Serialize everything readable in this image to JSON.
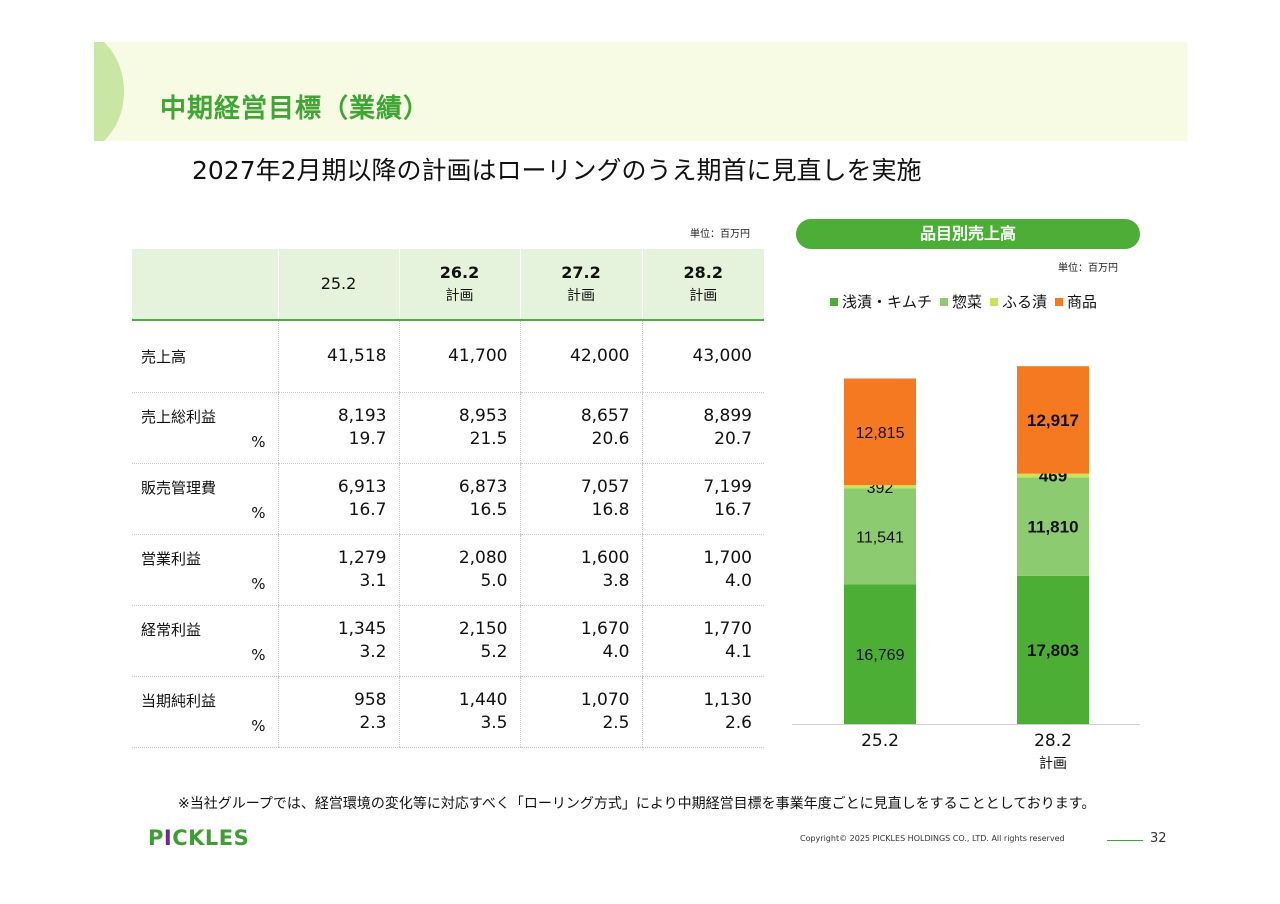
{
  "header": {
    "title": "中期経営目標（業績）",
    "subtitle": "2027年2月期以降の計画はローリングのうえ期首に見直しを実施"
  },
  "table": {
    "unit": "単位：百万円",
    "columns": [
      {
        "line1": "25.2",
        "line2": ""
      },
      {
        "line1": "26.2",
        "line2": "計画"
      },
      {
        "line1": "27.2",
        "line2": "計画"
      },
      {
        "line1": "28.2",
        "line2": "計画"
      }
    ],
    "percent_symbol": "%",
    "rows": [
      {
        "label": "売上高",
        "values": [
          "41,518",
          "41,700",
          "42,000",
          "43,000"
        ],
        "pct": [
          "",
          "",
          "",
          ""
        ]
      },
      {
        "label": "売上総利益",
        "values": [
          "8,193",
          "8,953",
          "8,657",
          "8,899"
        ],
        "pct": [
          "19.7",
          "21.5",
          "20.6",
          "20.7"
        ]
      },
      {
        "label": "販売管理費",
        "values": [
          "6,913",
          "6,873",
          "7,057",
          "7,199"
        ],
        "pct": [
          "16.7",
          "16.5",
          "16.8",
          "16.7"
        ]
      },
      {
        "label": "営業利益",
        "values": [
          "1,279",
          "2,080",
          "1,600",
          "1,700"
        ],
        "pct": [
          "3.1",
          "5.0",
          "3.8",
          "4.0"
        ]
      },
      {
        "label": "経常利益",
        "values": [
          "1,345",
          "2,150",
          "1,670",
          "1,770"
        ],
        "pct": [
          "3.2",
          "5.2",
          "4.0",
          "4.1"
        ]
      },
      {
        "label": "当期純利益",
        "values": [
          "958",
          "1,440",
          "1,070",
          "1,130"
        ],
        "pct": [
          "2.3",
          "3.5",
          "2.5",
          "2.6"
        ]
      }
    ]
  },
  "chart_panel": {
    "title": "品目別売上高",
    "unit": "単位：百万円"
  },
  "chart_data": {
    "type": "bar",
    "stacked": true,
    "categories": [
      "25.2",
      "28.2"
    ],
    "category_sublabels": [
      "",
      "計画"
    ],
    "series": [
      {
        "name": "浅漬・キムチ",
        "color": "#4cae34",
        "values": [
          16769,
          17803
        ],
        "labels": [
          "16,769",
          "17,803"
        ]
      },
      {
        "name": "惣菜",
        "color": "#8dcb70",
        "values": [
          11541,
          11810
        ],
        "labels": [
          "11,541",
          "11,810"
        ]
      },
      {
        "name": "ふる漬",
        "color": "#c6e55a",
        "values": [
          392,
          469
        ],
        "labels": [
          "392",
          "469"
        ]
      },
      {
        "name": "商品",
        "color": "#f47920",
        "values": [
          12815,
          12917
        ],
        "labels": [
          "12,815",
          "12,917"
        ]
      }
    ],
    "bold_labels_category_index": 1,
    "legend_position": "top",
    "ylim": [
      0,
      43500
    ]
  },
  "footer": {
    "note": "※当社グループでは、経営環境の変化等に対応すべく「ローリング方式」により中期経営目標を事業年度ごとに見直しをすることとしております。",
    "logo_pre": "P",
    "logo_dot": "I",
    "logo_post": "CKLES",
    "copyright": "Copyright© 2025 PICKLES HOLDINGS CO., LTD. All rights reserved",
    "page": "32"
  },
  "colors": {
    "accent": "#3fa535",
    "banner_bg": "#f8fbe3",
    "table_header_bg": "#e6f3dc"
  }
}
